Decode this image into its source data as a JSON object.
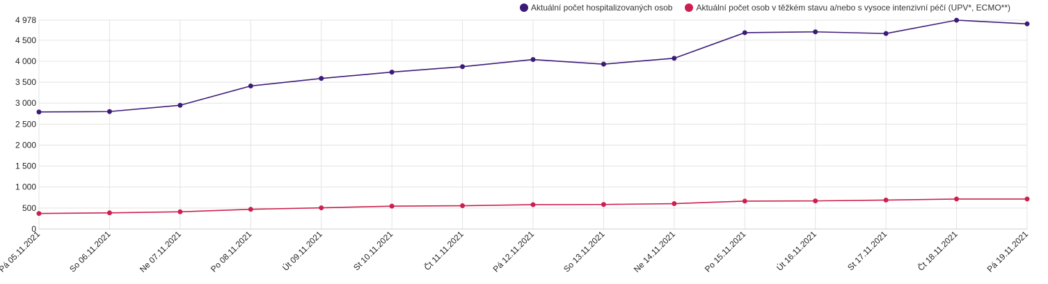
{
  "chart_data": {
    "type": "line",
    "categories": [
      "Pá 05.11.2021",
      "So 06.11.2021",
      "Ne 07.11.2021",
      "Po 08.11.2021",
      "Út 09.11.2021",
      "St 10.11.2021",
      "Čt 11.11.2021",
      "Pá 12.11.2021",
      "So 13.11.2021",
      "Ne 14.11.2021",
      "Po 15.11.2021",
      "Út 16.11.2021",
      "St 17.11.2021",
      "Čt 18.11.2021",
      "Pá 19.11.2021"
    ],
    "series": [
      {
        "name": "Aktuální počet hospitalizovaných osob",
        "color": "#3d1a78",
        "values": [
          2790,
          2800,
          2950,
          3410,
          3590,
          3740,
          3870,
          4040,
          3930,
          4070,
          4680,
          4700,
          4660,
          4978,
          4890
        ]
      },
      {
        "name": "Aktuální počet osob v těžkém stavu a/nebo s vysoce intenzivní péčí (UPV*, ECMO**)",
        "color": "#cc1f4f",
        "values": [
          370,
          385,
          410,
          470,
          505,
          545,
          555,
          580,
          585,
          605,
          665,
          670,
          690,
          715,
          715
        ]
      }
    ],
    "yticks": [
      "0",
      "500",
      "1 000",
      "1 500",
      "2 000",
      "2 500",
      "3 000",
      "3 500",
      "4 000",
      "4 500",
      "4 978"
    ],
    "ytick_values": [
      0,
      500,
      1000,
      1500,
      2000,
      2500,
      3000,
      3500,
      4000,
      4500,
      4978
    ],
    "ylim": [
      0,
      4978
    ],
    "grid": true,
    "legend_position": "top-right"
  }
}
